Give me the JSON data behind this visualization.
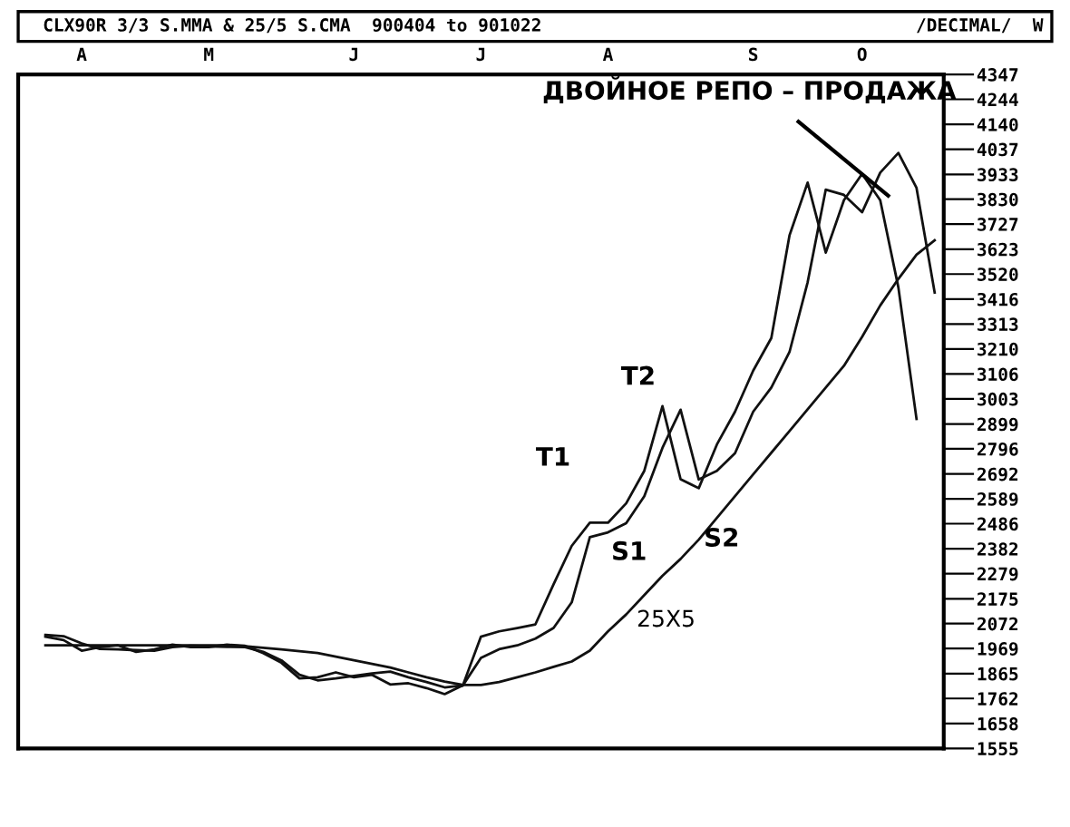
{
  "chart_data": {
    "type": "line",
    "title": "CLX90R 3/3 S.MMA & 25/5 S.CMA  900404 to 901022",
    "subtitle": "/DECIMAL/  W",
    "categories": [
      null,
      null,
      null,
      "A",
      null,
      null,
      null,
      null,
      null,
      null,
      "M",
      null,
      null,
      null,
      null,
      null,
      null,
      null,
      "J",
      null,
      null,
      null,
      null,
      null,
      null,
      "J",
      null,
      null,
      null,
      null,
      null,
      null,
      "A",
      null,
      null,
      null,
      null,
      null,
      null,
      null,
      "S",
      null,
      null,
      null,
      null,
      null,
      "O",
      null,
      null,
      null,
      null
    ],
    "ylim": [
      1555,
      4347
    ],
    "yticks": [
      4347,
      4244,
      4140,
      4037,
      3933,
      3830,
      3727,
      3623,
      3520,
      3416,
      3313,
      3210,
      3106,
      3003,
      2899,
      2796,
      2692,
      2589,
      2486,
      2382,
      2279,
      2175,
      2072,
      1969,
      1865,
      1762,
      1658,
      1555
    ],
    "grid": false,
    "line_style": "solid",
    "marker": "none",
    "series": [
      {
        "color": "#111111",
        "values": [
          null,
          2018,
          2004,
          1960,
          1975,
          1982,
          1955,
          1965,
          1985,
          1975,
          1975,
          1985,
          1980,
          1950,
          1910,
          1845,
          1850,
          1870,
          1850,
          1860,
          1820,
          1825,
          1805,
          1780,
          1816,
          2018,
          2040,
          2054,
          2069,
          2235,
          2394,
          2490,
          2490,
          2570,
          2705,
          2973,
          2670,
          2633,
          2814,
          2950,
          3120,
          3255,
          3680,
          3899,
          3609,
          3826,
          3935,
          3826,
          3465,
          2920,
          null
        ]
      },
      {
        "color": "#111111",
        "values": [
          null,
          2025,
          2020,
          1990,
          1967,
          1965,
          1962,
          1960,
          1975,
          1980,
          1978,
          1976,
          1975,
          1955,
          1920,
          1860,
          1837,
          1845,
          1855,
          1866,
          1873,
          1850,
          1830,
          1808,
          1816,
          1930,
          1966,
          1982,
          2010,
          2054,
          2160,
          2430,
          2450,
          2488,
          2600,
          2800,
          2958,
          2669,
          2705,
          2778,
          2950,
          3050,
          3197,
          3486,
          3870,
          3848,
          3776,
          3940,
          4022,
          3877,
          3443
        ]
      },
      {
        "color": "#111111",
        "values": [
          null,
          1982,
          1982,
          1982,
          1982,
          1982,
          1982,
          1982,
          1982,
          1982,
          1982,
          1982,
          1978,
          1972,
          1965,
          1958,
          1950,
          1935,
          1920,
          1905,
          1890,
          1870,
          1850,
          1832,
          1818,
          1818,
          1830,
          1850,
          1870,
          1893,
          1915,
          1960,
          2040,
          2110,
          2190,
          2270,
          2340,
          2420,
          2510,
          2600,
          2690,
          2780,
          2870,
          2960,
          3050,
          3140,
          3260,
          3390,
          3500,
          3600,
          3660
        ]
      }
    ],
    "annotations": [
      "ДВОЙНОЕ РЕПО – ПРОДАЖА",
      "T1",
      "T2",
      "S1",
      "S2",
      "25X5"
    ]
  }
}
